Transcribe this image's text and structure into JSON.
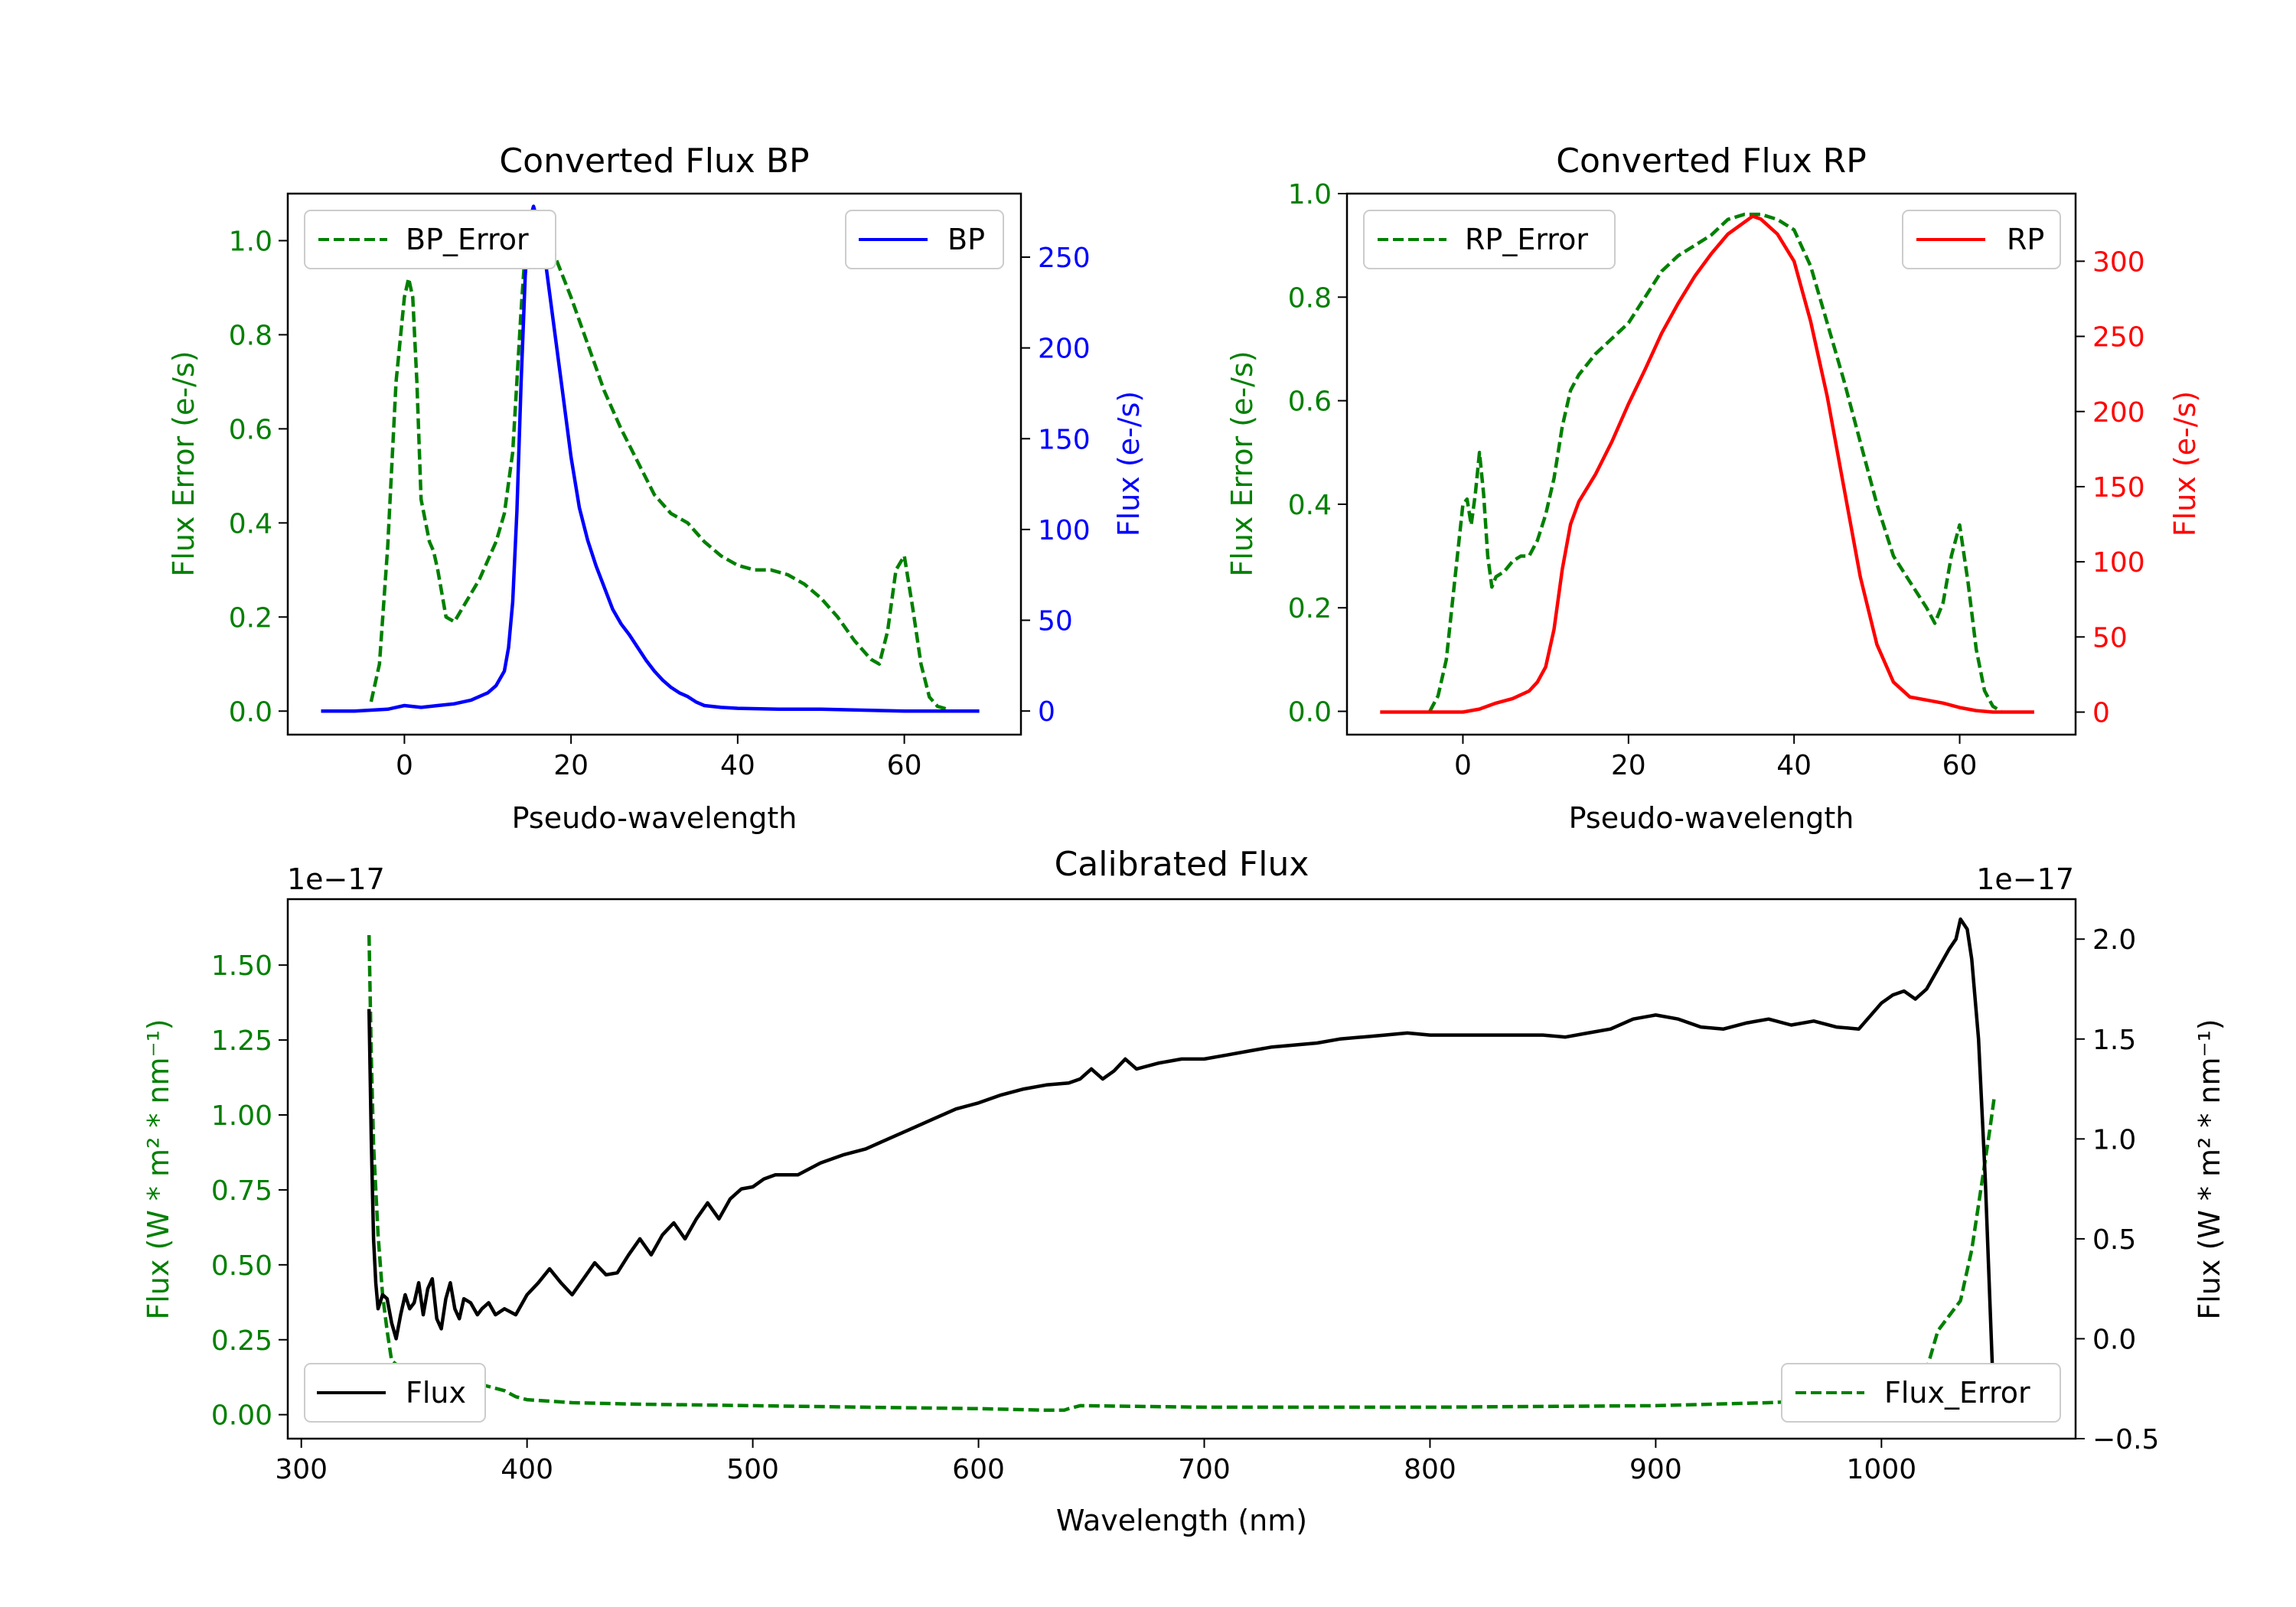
{
  "colors": {
    "bp": "#0000ff",
    "rp": "#ff0000",
    "error": "#008000",
    "flux": "#000000",
    "axis": "#000000"
  },
  "chart_data": [
    {
      "id": "bp",
      "type": "line",
      "title": "Converted Flux BP",
      "xlabel": "Pseudo-wavelength",
      "ylabel_left": "Flux Error (e-/s)",
      "ylabel_right": "Flux (e-/s)",
      "xlim": [
        -14,
        74
      ],
      "ylim_left": [
        -0.05,
        1.1
      ],
      "ylim_right": [
        -13,
        285
      ],
      "xticks": [
        0,
        20,
        40,
        60
      ],
      "yticks_left": [
        0.0,
        0.2,
        0.4,
        0.6,
        0.8,
        1.0
      ],
      "ytick_labels_left": [
        "0.0",
        "0.2",
        "0.4",
        "0.6",
        "0.8",
        "1.0"
      ],
      "yticks_right": [
        0,
        50,
        100,
        150,
        200,
        250
      ],
      "series": [
        {
          "name": "BP_Error",
          "axis": "left",
          "style": "dashed",
          "color": "#008000",
          "x": [
            -4,
            -3,
            -2,
            -1,
            0,
            0.5,
            1,
            1.5,
            2,
            3,
            3.5,
            4,
            5,
            6,
            7,
            8,
            9,
            10,
            11,
            12,
            13,
            14,
            14.5,
            15,
            16,
            17,
            18,
            20,
            22,
            24,
            26,
            28,
            30,
            32,
            34,
            36,
            38,
            40,
            42,
            44,
            46,
            48,
            50,
            52,
            54,
            56,
            57,
            58,
            59,
            60,
            61,
            62,
            63,
            64,
            65
          ],
          "y": [
            0.02,
            0.1,
            0.35,
            0.7,
            0.88,
            0.92,
            0.88,
            0.7,
            0.45,
            0.36,
            0.34,
            0.3,
            0.2,
            0.19,
            0.22,
            0.25,
            0.28,
            0.32,
            0.36,
            0.42,
            0.55,
            0.85,
            0.98,
            1.02,
            1.02,
            1.0,
            0.97,
            0.88,
            0.78,
            0.68,
            0.6,
            0.53,
            0.46,
            0.42,
            0.4,
            0.36,
            0.33,
            0.31,
            0.3,
            0.3,
            0.29,
            0.27,
            0.24,
            0.2,
            0.15,
            0.11,
            0.1,
            0.17,
            0.3,
            0.33,
            0.22,
            0.1,
            0.03,
            0.01,
            0.005
          ]
        },
        {
          "name": "BP",
          "axis": "right",
          "style": "solid",
          "color": "#0000ff",
          "x": [
            -10,
            -6,
            -2,
            0,
            2,
            4,
            6,
            8,
            10,
            11,
            12,
            12.5,
            13,
            13.5,
            14,
            14.5,
            15,
            15.5,
            16,
            17,
            18,
            19,
            20,
            21,
            22,
            23,
            24,
            25,
            26,
            27,
            28,
            29,
            30,
            31,
            32,
            33,
            34,
            35,
            36,
            38,
            40,
            45,
            50,
            55,
            60,
            65,
            69
          ],
          "y": [
            0,
            0,
            1,
            3,
            2,
            3,
            4,
            6,
            10,
            14,
            22,
            35,
            60,
            110,
            180,
            240,
            270,
            278,
            270,
            245,
            210,
            175,
            140,
            112,
            94,
            80,
            68,
            56,
            48,
            42,
            35,
            28,
            22,
            17,
            13,
            10,
            8,
            5,
            3,
            2,
            1.5,
            1,
            1,
            0.5,
            0,
            0,
            0
          ]
        }
      ],
      "legend": [
        {
          "label": "BP_Error",
          "position": "top-left"
        },
        {
          "label": "BP",
          "position": "top-right"
        }
      ]
    },
    {
      "id": "rp",
      "type": "line",
      "title": "Converted Flux RP",
      "xlabel": "Pseudo-wavelength",
      "ylabel_left": "Flux Error (e-/s)",
      "ylabel_right": "Flux (e-/s)",
      "xlim": [
        -14,
        74
      ],
      "ylim_left": [
        -0.045,
        1.0
      ],
      "ylim_right": [
        -15,
        345
      ],
      "xticks": [
        0,
        20,
        40,
        60
      ],
      "yticks_left": [
        0.0,
        0.2,
        0.4,
        0.6,
        0.8,
        1.0
      ],
      "ytick_labels_left": [
        "0.0",
        "0.2",
        "0.4",
        "0.6",
        "0.8",
        "1.0"
      ],
      "yticks_right": [
        0,
        50,
        100,
        150,
        200,
        250,
        300
      ],
      "series": [
        {
          "name": "RP_Error",
          "axis": "left",
          "style": "dashed",
          "color": "#008000",
          "x": [
            -4,
            -3,
            -2,
            -1,
            0,
            0.5,
            1,
            1.5,
            2,
            2.5,
            3,
            3.5,
            4,
            5,
            6,
            7,
            8,
            9,
            10,
            11,
            12,
            13,
            14,
            15,
            16,
            18,
            20,
            22,
            24,
            26,
            28,
            30,
            32,
            34,
            36,
            38,
            40,
            42,
            44,
            46,
            48,
            50,
            52,
            54,
            56,
            57,
            58,
            59,
            60,
            61,
            62,
            63,
            64,
            65
          ],
          "y": [
            0.0,
            0.03,
            0.1,
            0.25,
            0.4,
            0.41,
            0.36,
            0.42,
            0.5,
            0.42,
            0.3,
            0.24,
            0.26,
            0.27,
            0.29,
            0.3,
            0.3,
            0.33,
            0.38,
            0.45,
            0.55,
            0.62,
            0.65,
            0.67,
            0.69,
            0.72,
            0.75,
            0.8,
            0.85,
            0.88,
            0.9,
            0.92,
            0.95,
            0.96,
            0.96,
            0.95,
            0.93,
            0.86,
            0.75,
            0.64,
            0.52,
            0.4,
            0.3,
            0.25,
            0.2,
            0.17,
            0.21,
            0.3,
            0.36,
            0.25,
            0.12,
            0.04,
            0.01,
            0.0
          ]
        },
        {
          "name": "RP",
          "axis": "right",
          "style": "solid",
          "color": "#ff0000",
          "x": [
            -10,
            -5,
            0,
            2,
            4,
            6,
            8,
            9,
            10,
            11,
            12,
            13,
            14,
            16,
            18,
            20,
            22,
            24,
            26,
            28,
            30,
            32,
            34,
            35,
            36,
            38,
            40,
            42,
            44,
            46,
            48,
            50,
            52,
            54,
            56,
            58,
            60,
            62,
            64,
            66,
            69
          ],
          "y": [
            0,
            0,
            0,
            2,
            6,
            9,
            14,
            20,
            30,
            55,
            95,
            125,
            140,
            158,
            180,
            205,
            228,
            252,
            272,
            290,
            305,
            318,
            326,
            330,
            328,
            318,
            300,
            260,
            210,
            150,
            90,
            45,
            20,
            10,
            8,
            6,
            3,
            1,
            0,
            0,
            0
          ]
        }
      ],
      "legend": [
        {
          "label": "RP_Error",
          "position": "top-left"
        },
        {
          "label": "RP",
          "position": "top-right"
        }
      ]
    },
    {
      "id": "calibrated",
      "type": "line",
      "title": "Calibrated Flux",
      "xlabel": "Wavelength (nm)",
      "ylabel_left": "Flux (W * m² * nm⁻¹)",
      "ylabel_right": "Flux (W * m² * nm⁻¹)",
      "offset_left": "1e−17",
      "offset_right": "1e−17",
      "xlim": [
        294,
        1086
      ],
      "ylim_left": [
        -0.08,
        1.72
      ],
      "ylim_right": [
        -0.5,
        2.2
      ],
      "xticks": [
        300,
        400,
        500,
        600,
        700,
        800,
        900,
        1000
      ],
      "yticks_left": [
        0.0,
        0.25,
        0.5,
        0.75,
        1.0,
        1.25,
        1.5
      ],
      "ytick_labels_left": [
        "0.00",
        "0.25",
        "0.50",
        "0.75",
        "1.00",
        "1.25",
        "1.50"
      ],
      "yticks_right": [
        -0.5,
        0.0,
        0.5,
        1.0,
        1.5,
        2.0
      ],
      "ytick_labels_right": [
        "−0.5",
        "0.0",
        "0.5",
        "1.0",
        "1.5",
        "2.0"
      ],
      "series": [
        {
          "name": "Flux_Error",
          "axis": "left",
          "style": "dashed",
          "color": "#008000",
          "x": [
            330,
            331,
            332,
            334,
            336,
            338,
            340,
            345,
            350,
            360,
            370,
            380,
            390,
            395,
            400,
            420,
            450,
            500,
            550,
            600,
            630,
            638,
            640,
            645,
            700,
            800,
            900,
            950,
            980,
            1000,
            1010,
            1015,
            1020,
            1025,
            1030,
            1035,
            1040,
            1045,
            1048,
            1050
          ],
          "y": [
            1.6,
            1.2,
            0.9,
            0.6,
            0.4,
            0.28,
            0.18,
            0.15,
            0.13,
            0.12,
            0.11,
            0.1,
            0.08,
            0.06,
            0.05,
            0.04,
            0.035,
            0.03,
            0.025,
            0.02,
            0.015,
            0.015,
            0.02,
            0.03,
            0.025,
            0.025,
            0.03,
            0.04,
            0.05,
            0.07,
            0.09,
            0.11,
            0.15,
            0.28,
            0.33,
            0.38,
            0.55,
            0.8,
            0.95,
            1.06
          ]
        },
        {
          "name": "Flux",
          "axis": "right",
          "style": "solid",
          "color": "#000000",
          "x": [
            330,
            331,
            332,
            333,
            334,
            336,
            338,
            340,
            342,
            344,
            346,
            348,
            350,
            352,
            354,
            356,
            358,
            360,
            362,
            364,
            366,
            368,
            370,
            372,
            375,
            378,
            380,
            383,
            386,
            390,
            395,
            400,
            405,
            410,
            415,
            420,
            425,
            430,
            435,
            440,
            445,
            450,
            455,
            460,
            465,
            470,
            475,
            480,
            485,
            490,
            495,
            500,
            505,
            510,
            520,
            530,
            540,
            550,
            560,
            570,
            580,
            590,
            600,
            610,
            620,
            630,
            640,
            645,
            650,
            655,
            660,
            665,
            670,
            680,
            690,
            700,
            710,
            720,
            730,
            740,
            750,
            760,
            770,
            780,
            790,
            800,
            810,
            820,
            830,
            840,
            850,
            860,
            870,
            880,
            890,
            900,
            910,
            920,
            930,
            940,
            950,
            960,
            970,
            980,
            990,
            1000,
            1005,
            1010,
            1015,
            1020,
            1025,
            1030,
            1033,
            1035,
            1038,
            1040,
            1043,
            1046,
            1050
          ],
          "y": [
            1.65,
            1.0,
            0.5,
            0.28,
            0.15,
            0.22,
            0.2,
            0.08,
            0.0,
            0.12,
            0.22,
            0.15,
            0.18,
            0.28,
            0.12,
            0.25,
            0.3,
            0.1,
            0.05,
            0.2,
            0.28,
            0.15,
            0.1,
            0.2,
            0.18,
            0.12,
            0.15,
            0.18,
            0.12,
            0.15,
            0.12,
            0.22,
            0.28,
            0.35,
            0.28,
            0.22,
            0.3,
            0.38,
            0.32,
            0.33,
            0.42,
            0.5,
            0.42,
            0.52,
            0.58,
            0.5,
            0.6,
            0.68,
            0.6,
            0.7,
            0.75,
            0.76,
            0.8,
            0.82,
            0.82,
            0.88,
            0.92,
            0.95,
            1.0,
            1.05,
            1.1,
            1.15,
            1.18,
            1.22,
            1.25,
            1.27,
            1.28,
            1.3,
            1.35,
            1.3,
            1.34,
            1.4,
            1.35,
            1.38,
            1.4,
            1.4,
            1.42,
            1.44,
            1.46,
            1.47,
            1.48,
            1.5,
            1.51,
            1.52,
            1.53,
            1.52,
            1.52,
            1.52,
            1.52,
            1.52,
            1.52,
            1.51,
            1.53,
            1.55,
            1.6,
            1.62,
            1.6,
            1.56,
            1.55,
            1.58,
            1.6,
            1.57,
            1.59,
            1.56,
            1.55,
            1.68,
            1.72,
            1.74,
            1.7,
            1.75,
            1.85,
            1.95,
            2.0,
            2.1,
            2.05,
            1.9,
            1.5,
            0.8,
            -0.4
          ]
        }
      ],
      "legend": [
        {
          "label": "Flux",
          "position": "bottom-left"
        },
        {
          "label": "Flux_Error",
          "position": "bottom-right"
        }
      ]
    }
  ]
}
